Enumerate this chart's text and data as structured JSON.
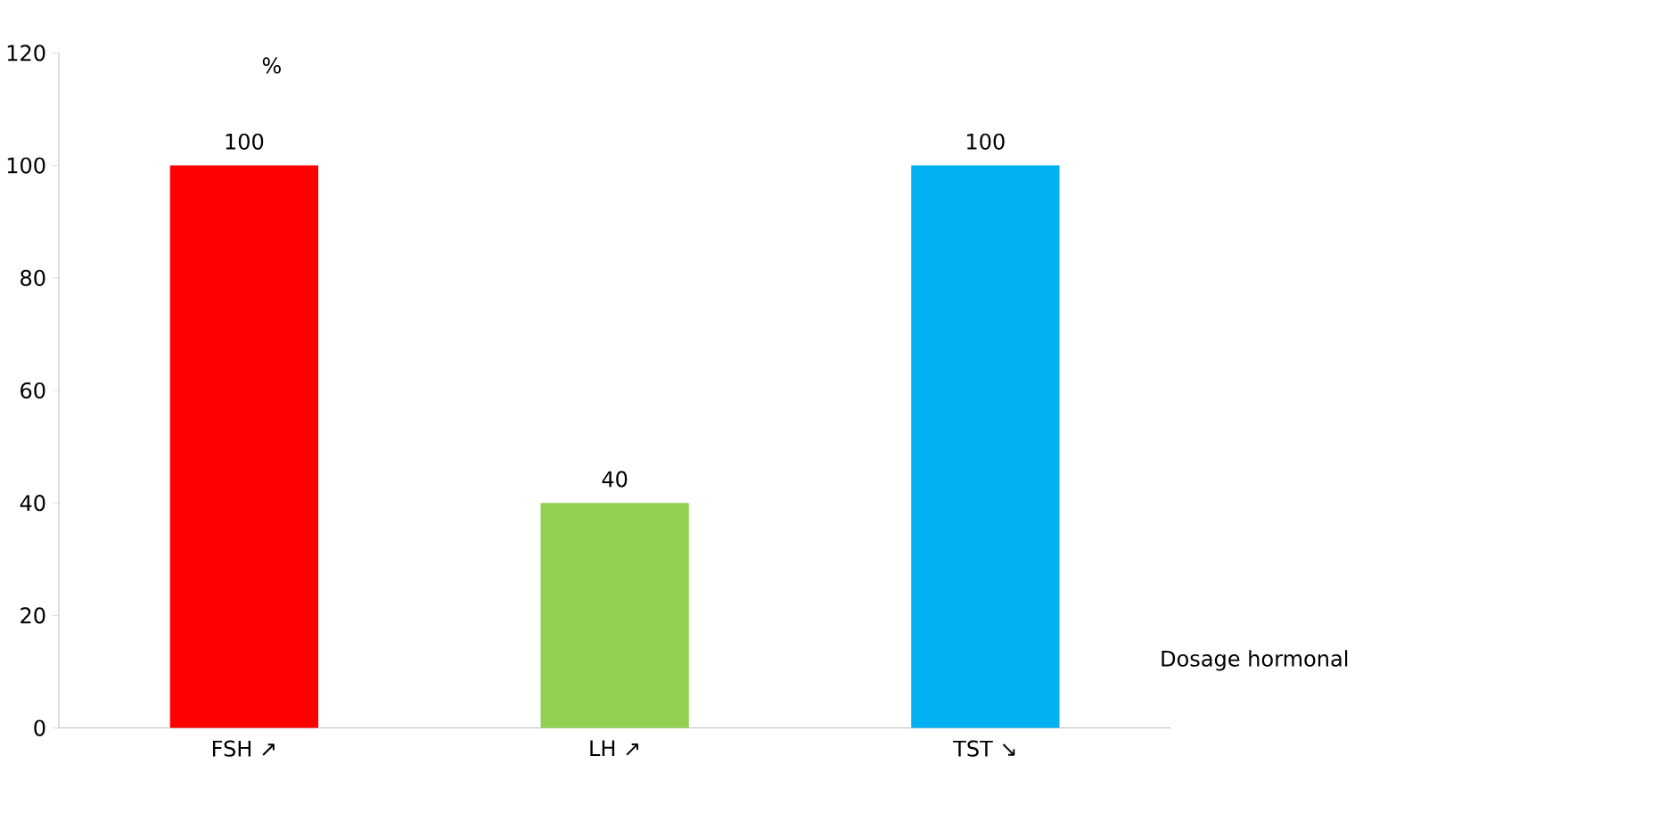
{
  "chart_data": {
    "type": "bar",
    "xlabel": "Dosage hormonal",
    "ylabel": "%",
    "categories": [
      "FSH ↗",
      "LH ↗",
      "TST ↘"
    ],
    "values": [
      100,
      40,
      100
    ],
    "colors": [
      "#ff0000",
      "#92d050",
      "#00b0f0"
    ],
    "ylim": [
      0,
      120
    ],
    "yticks": [
      0,
      20,
      40,
      60,
      80,
      100,
      120
    ],
    "data_labels": true,
    "grid": false
  }
}
